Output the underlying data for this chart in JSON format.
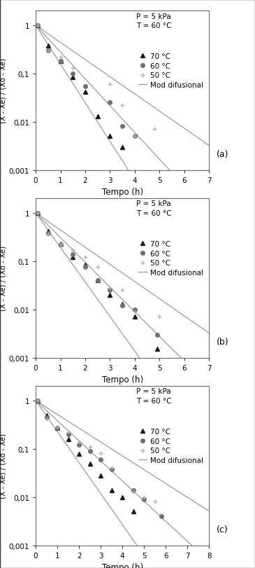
{
  "subplots": [
    {
      "label": "(a)",
      "xlim": [
        0,
        7
      ],
      "xticks": [
        0,
        1,
        2,
        3,
        4,
        5,
        6,
        7
      ],
      "data_70": [
        [
          0.08,
          1.0
        ],
        [
          0.5,
          0.38
        ],
        [
          1.0,
          0.18
        ],
        [
          1.5,
          0.085
        ],
        [
          2.0,
          0.042
        ],
        [
          2.5,
          0.013
        ],
        [
          3.0,
          0.005
        ],
        [
          3.5,
          0.003
        ]
      ],
      "data_60": [
        [
          0.08,
          1.0
        ],
        [
          0.5,
          0.3
        ],
        [
          1.0,
          0.18
        ],
        [
          1.5,
          0.1
        ],
        [
          2.0,
          0.055
        ],
        [
          3.0,
          0.025
        ],
        [
          3.5,
          0.008
        ],
        [
          4.0,
          0.005
        ]
      ],
      "data_50": [
        [
          0.08,
          1.0
        ],
        [
          0.5,
          0.3
        ],
        [
          1.0,
          0.22
        ],
        [
          1.5,
          0.13
        ],
        [
          3.0,
          0.06
        ],
        [
          3.5,
          0.022
        ],
        [
          4.0,
          0.005
        ],
        [
          4.8,
          0.007
        ]
      ],
      "k_70": 1.85,
      "k_60": 1.28,
      "k_50": 0.82
    },
    {
      "label": "(b)",
      "xlim": [
        0,
        7
      ],
      "xticks": [
        0,
        1,
        2,
        3,
        4,
        5,
        6,
        7
      ],
      "data_70": [
        [
          0.08,
          1.0
        ],
        [
          0.5,
          0.42
        ],
        [
          1.0,
          0.23
        ],
        [
          1.5,
          0.12
        ],
        [
          2.0,
          0.085
        ],
        [
          2.5,
          0.04
        ],
        [
          3.0,
          0.02
        ],
        [
          3.5,
          0.013
        ],
        [
          4.0,
          0.007
        ],
        [
          4.9,
          0.0015
        ]
      ],
      "data_60": [
        [
          0.08,
          1.0
        ],
        [
          0.5,
          0.38
        ],
        [
          1.0,
          0.22
        ],
        [
          1.5,
          0.14
        ],
        [
          2.0,
          0.075
        ],
        [
          2.5,
          0.04
        ],
        [
          3.0,
          0.025
        ],
        [
          3.5,
          0.012
        ],
        [
          4.0,
          0.01
        ],
        [
          4.9,
          0.003
        ]
      ],
      "data_50": [
        [
          0.08,
          1.0
        ],
        [
          0.5,
          0.36
        ],
        [
          1.0,
          0.22
        ],
        [
          1.5,
          0.17
        ],
        [
          2.0,
          0.12
        ],
        [
          2.5,
          0.075
        ],
        [
          3.0,
          0.028
        ],
        [
          3.5,
          0.025
        ],
        [
          4.0,
          0.009
        ],
        [
          5.0,
          0.007
        ]
      ],
      "k_70": 1.65,
      "k_60": 1.18,
      "k_50": 0.82
    },
    {
      "label": "(c)",
      "xlim": [
        0,
        8
      ],
      "xticks": [
        0,
        1,
        2,
        3,
        4,
        5,
        6,
        7,
        8
      ],
      "data_70": [
        [
          0.08,
          1.0
        ],
        [
          0.5,
          0.5
        ],
        [
          1.0,
          0.27
        ],
        [
          1.5,
          0.16
        ],
        [
          2.0,
          0.078
        ],
        [
          2.5,
          0.05
        ],
        [
          3.0,
          0.028
        ],
        [
          3.5,
          0.014
        ],
        [
          4.0,
          0.01
        ],
        [
          4.5,
          0.005
        ]
      ],
      "data_60": [
        [
          0.08,
          1.0
        ],
        [
          0.5,
          0.45
        ],
        [
          1.0,
          0.27
        ],
        [
          1.5,
          0.2
        ],
        [
          2.0,
          0.12
        ],
        [
          2.5,
          0.09
        ],
        [
          3.0,
          0.06
        ],
        [
          3.5,
          0.038
        ],
        [
          4.5,
          0.014
        ],
        [
          5.0,
          0.009
        ],
        [
          5.8,
          0.004
        ]
      ],
      "data_50": [
        [
          0.08,
          1.0
        ],
        [
          0.5,
          0.42
        ],
        [
          1.0,
          0.28
        ],
        [
          1.5,
          0.22
        ],
        [
          2.0,
          0.14
        ],
        [
          2.5,
          0.11
        ],
        [
          3.0,
          0.08
        ],
        [
          3.5,
          0.04
        ],
        [
          4.5,
          0.013
        ],
        [
          5.0,
          0.01
        ],
        [
          5.5,
          0.008
        ]
      ],
      "k_70": 1.48,
      "k_60": 0.96,
      "k_50": 0.66
    }
  ],
  "ylabel": "(X - Xe) / (Xo - Xe)",
  "xlabel": "Tempo (h)",
  "color_70": "#1a1a1a",
  "color_60": "#707070",
  "color_50": "#b0b0b0",
  "color_line": "#909090",
  "bg_color": "#ffffff"
}
